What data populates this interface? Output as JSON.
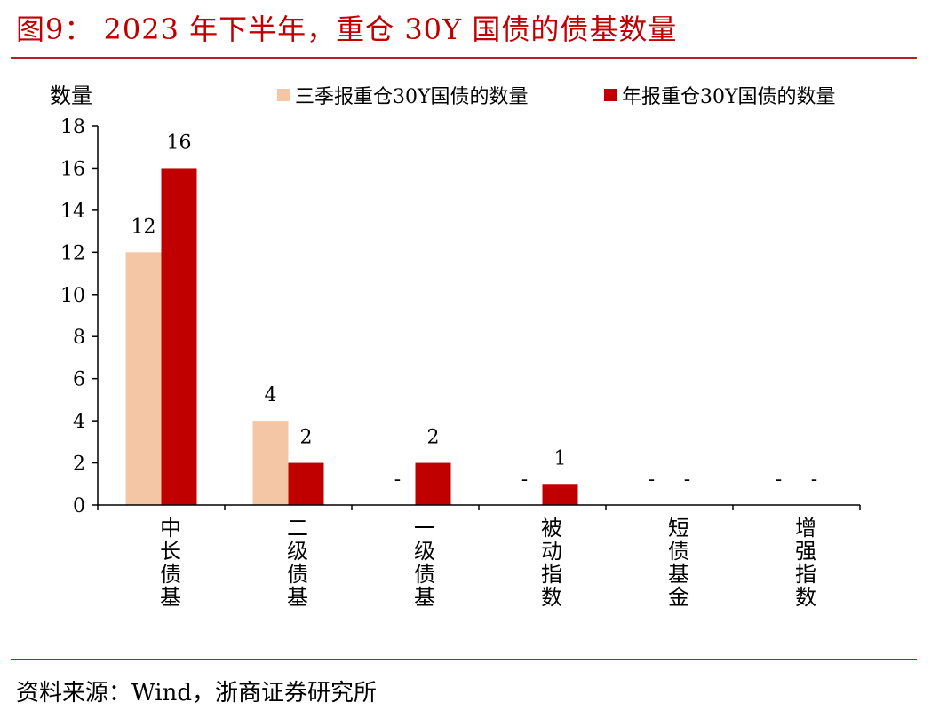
{
  "figure": {
    "title": "图9： 2023 年下半年，重仓 30Y 国债的债基数量",
    "source": "资料来源：Wind，浙商证券研究所"
  },
  "colors": {
    "title_red": "#c00000",
    "rule_red": "#b22222",
    "q3_series": "#f5c6a5",
    "annual_series": "#c00000"
  },
  "chart_data": {
    "type": "bar",
    "ylabel": "数量",
    "ylim": [
      0,
      18
    ],
    "yticks": [
      0,
      2,
      4,
      6,
      8,
      10,
      12,
      14,
      16,
      18
    ],
    "categories": [
      "中长债基",
      "二级债基",
      "一级债基",
      "被动指数",
      "短债基金",
      "增强指数"
    ],
    "series": [
      {
        "name": "三季报重仓30Y国债的数量",
        "values": [
          12,
          4,
          null,
          null,
          null,
          null
        ],
        "labels": [
          "12",
          "4",
          "-",
          "-",
          "-",
          "-"
        ]
      },
      {
        "name": "年报重仓30Y国债的数量",
        "values": [
          16,
          2,
          2,
          1,
          null,
          null
        ],
        "labels": [
          "16",
          "2",
          "2",
          "1",
          "-",
          "-"
        ]
      }
    ],
    "legend_position": "top",
    "grid": false
  }
}
